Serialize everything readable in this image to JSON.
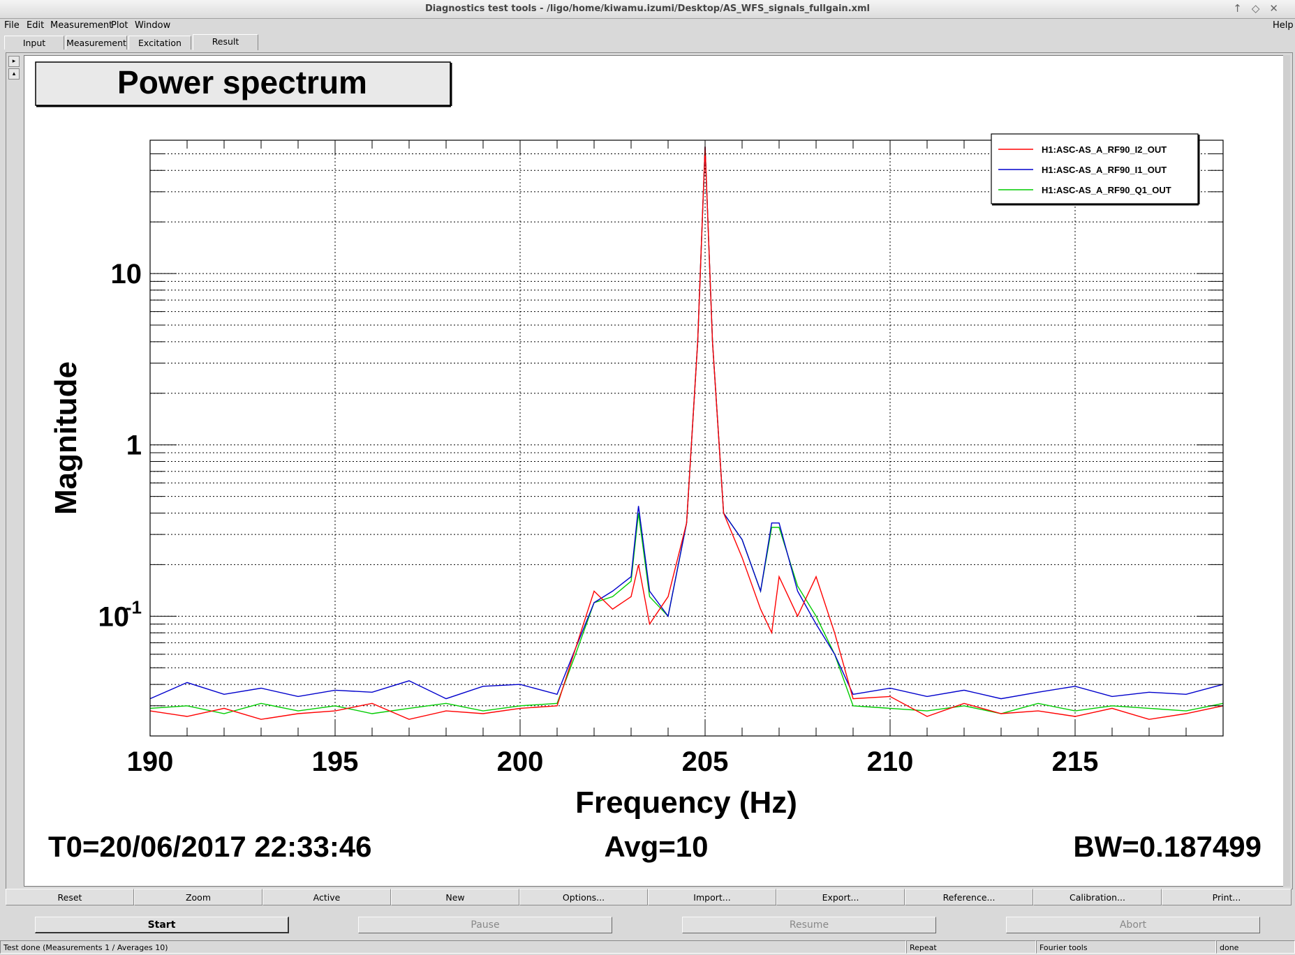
{
  "window": {
    "title": "Diagnostics test tools - /ligo/home/kiwamu.izumi/Desktop/AS_WFS_signals_fullgain.xml",
    "controls": [
      "↑",
      "◇",
      "✕"
    ]
  },
  "menu": {
    "items": [
      "File",
      "Edit",
      "Measurement",
      "Plot",
      "Window"
    ],
    "help": "Help"
  },
  "tabs": [
    "Input",
    "Measurement",
    "Excitation",
    "Result"
  ],
  "active_tab": "Result",
  "side_buttons": [
    "▸",
    "▴"
  ],
  "plot": {
    "title": "Power spectrum",
    "footer": {
      "t0": "T0=20/06/2017 22:33:46",
      "avg": "Avg=10",
      "bw": "BW=0.187499"
    }
  },
  "chart_data": {
    "type": "line",
    "title": "Power spectrum",
    "xlabel": "Frequency (Hz)",
    "ylabel": "Magnitude",
    "xlim": [
      190,
      219
    ],
    "ylim": [
      0.02,
      60
    ],
    "yscale": "log",
    "grid": true,
    "xticks": [
      190,
      195,
      200,
      205,
      210,
      215
    ],
    "xtick_labels": [
      "190",
      "195",
      "200",
      "205",
      "210",
      "215"
    ],
    "yticks": [
      10,
      1,
      0.1
    ],
    "ytick_labels": [
      "10",
      "1",
      "10",
      "-1"
    ],
    "legend_position": "top-right",
    "x": [
      190,
      191,
      192,
      193,
      194,
      195,
      196,
      197,
      198,
      199,
      200,
      201,
      201.5,
      202,
      202.5,
      203,
      203.2,
      203.5,
      204,
      204.5,
      204.8,
      205,
      205.2,
      205.5,
      206,
      206.5,
      206.8,
      207,
      207.5,
      208,
      208.5,
      209,
      210,
      211,
      212,
      213,
      214,
      215,
      216,
      217,
      218,
      219
    ],
    "series": [
      {
        "name": "H1:ASC-AS_A_RF90_I2_OUT",
        "color": "#ff0000",
        "values": [
          0.028,
          0.026,
          0.029,
          0.025,
          0.027,
          0.028,
          0.031,
          0.025,
          0.028,
          0.027,
          0.029,
          0.03,
          0.065,
          0.14,
          0.11,
          0.13,
          0.2,
          0.09,
          0.13,
          0.35,
          4.0,
          55,
          4.0,
          0.4,
          0.22,
          0.11,
          0.08,
          0.17,
          0.1,
          0.17,
          0.08,
          0.033,
          0.034,
          0.026,
          0.031,
          0.027,
          0.028,
          0.026,
          0.029,
          0.025,
          0.027,
          0.03
        ]
      },
      {
        "name": "H1:ASC-AS_A_RF90_I1_OUT",
        "color": "#0000cc",
        "values": [
          0.033,
          0.041,
          0.035,
          0.038,
          0.034,
          0.037,
          0.036,
          0.042,
          0.033,
          0.039,
          0.04,
          0.035,
          0.065,
          0.12,
          0.14,
          0.17,
          0.44,
          0.14,
          0.1,
          0.35,
          4.0,
          55,
          4.0,
          0.4,
          0.28,
          0.14,
          0.35,
          0.35,
          0.14,
          0.09,
          0.06,
          0.035,
          0.038,
          0.034,
          0.037,
          0.033,
          0.036,
          0.039,
          0.034,
          0.036,
          0.035,
          0.04
        ]
      },
      {
        "name": "H1:ASC-AS_A_RF90_Q1_OUT",
        "color": "#00cc00",
        "values": [
          0.029,
          0.03,
          0.027,
          0.031,
          0.028,
          0.03,
          0.027,
          0.029,
          0.031,
          0.028,
          0.03,
          0.031,
          0.06,
          0.12,
          0.13,
          0.16,
          0.4,
          0.13,
          0.1,
          0.35,
          4.0,
          55,
          4.0,
          0.4,
          0.28,
          0.14,
          0.33,
          0.33,
          0.15,
          0.1,
          0.06,
          0.03,
          0.029,
          0.028,
          0.03,
          0.027,
          0.031,
          0.028,
          0.03,
          0.029,
          0.028,
          0.031
        ]
      }
    ]
  },
  "action_buttons": [
    "Reset",
    "Zoom",
    "Active",
    "New",
    "Options...",
    "Import...",
    "Export...",
    "Reference...",
    "Calibration...",
    "Print..."
  ],
  "control_buttons": [
    {
      "label": "Start",
      "state": "primary"
    },
    {
      "label": "Pause",
      "state": "disabled"
    },
    {
      "label": "Resume",
      "state": "disabled"
    },
    {
      "label": "Abort",
      "state": "disabled"
    }
  ],
  "status": {
    "message": "Test done (Measurements 1 / Averages 10)",
    "mode": "Repeat",
    "tool": "Fourier tools",
    "state": "done"
  }
}
